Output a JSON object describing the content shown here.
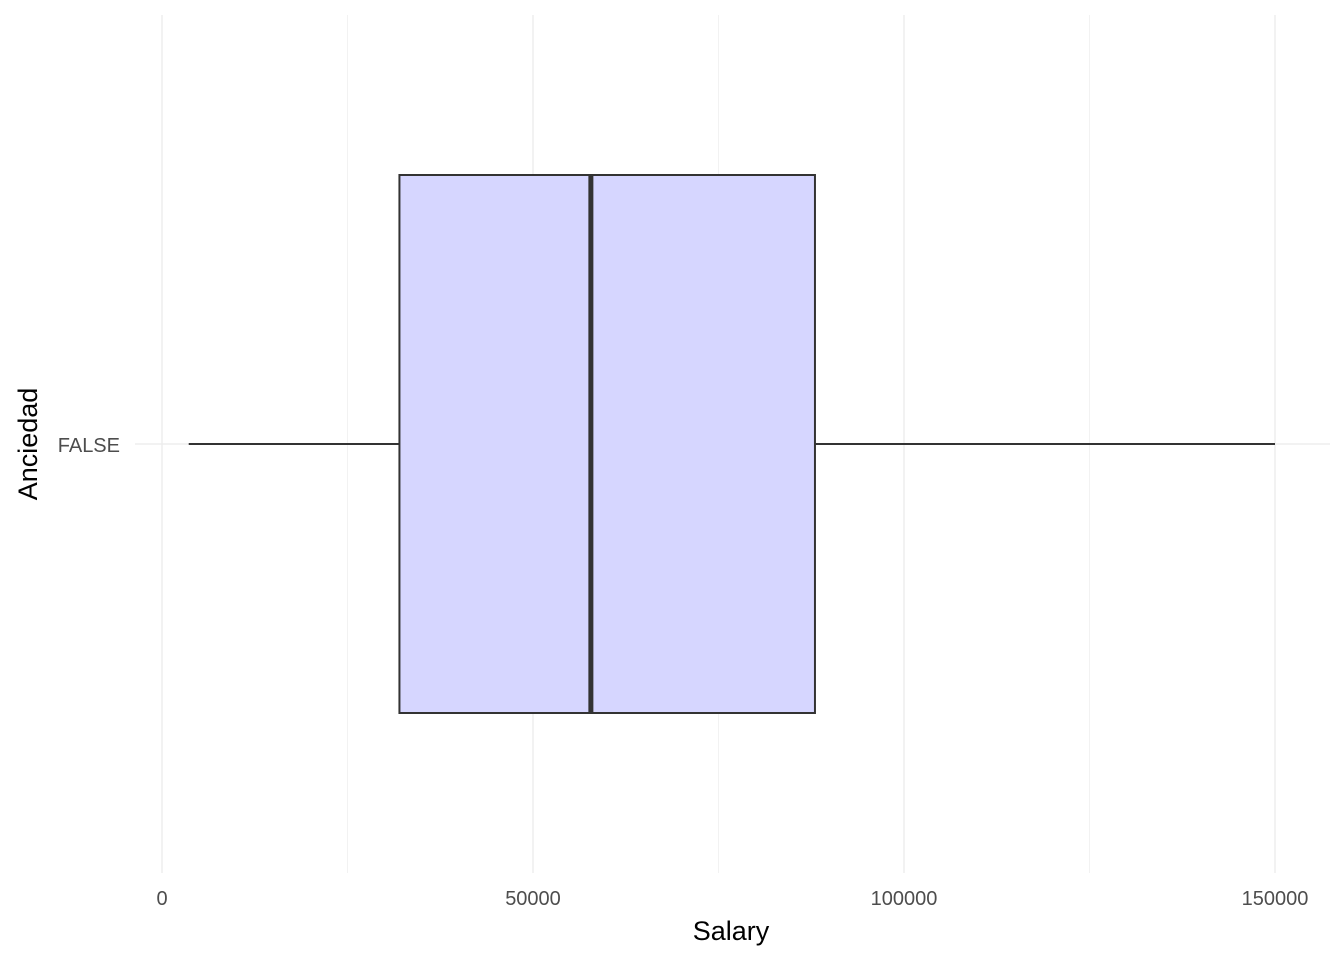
{
  "chart_data": {
    "type": "boxplot",
    "orientation": "horizontal",
    "xlabel": "Salary",
    "ylabel": "Anciedad",
    "xlim": [
      -5000,
      157500
    ],
    "x_ticks": [
      {
        "value": 0,
        "label": "0"
      },
      {
        "value": 50000,
        "label": "50000"
      },
      {
        "value": 100000,
        "label": "100000"
      },
      {
        "value": 150000,
        "label": "150000"
      }
    ],
    "x_minor_ticks": [
      25000,
      75000,
      125000
    ],
    "categories": [
      "FALSE"
    ],
    "boxes": [
      {
        "category": "FALSE",
        "whisker_low": 3600,
        "q1": 32000,
        "median": 57800,
        "q3": 88000,
        "whisker_high": 150000
      }
    ],
    "grid": true,
    "legend": "none",
    "colors": {
      "box_fill": "#d6d6ff",
      "box_stroke": "#333333",
      "grid_major": "#ebebeb",
      "grid_minor": "#f2f2f2"
    }
  }
}
